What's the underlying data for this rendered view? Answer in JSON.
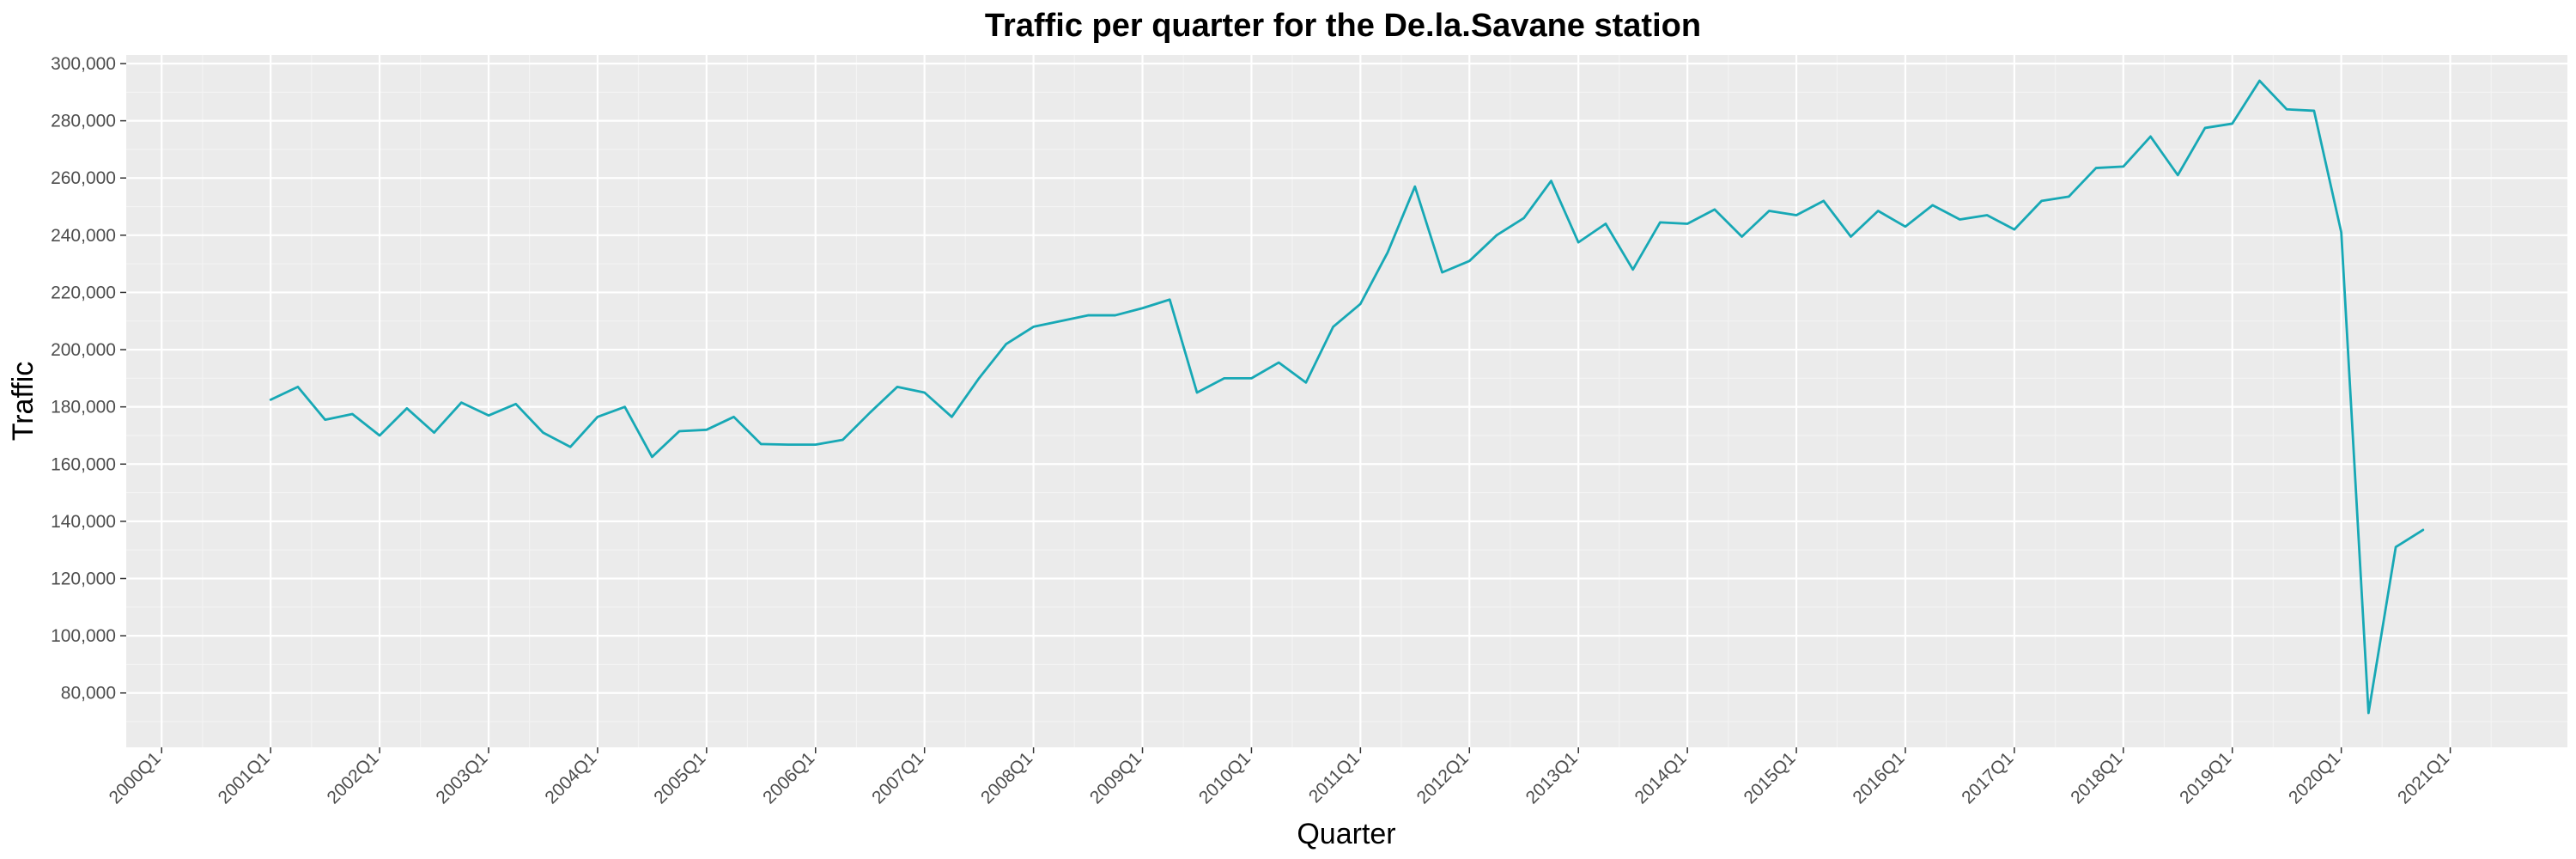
{
  "chart_data": {
    "type": "line",
    "title": "Traffic per quarter for the De.la.Savane station",
    "xlabel": "Quarter",
    "ylabel": "Traffic",
    "grid": true,
    "legend": "none",
    "x_ticks": [
      "2000Q1",
      "2001Q1",
      "2002Q1",
      "2003Q1",
      "2004Q1",
      "2005Q1",
      "2006Q1",
      "2007Q1",
      "2008Q1",
      "2009Q1",
      "2010Q1",
      "2011Q1",
      "2012Q1",
      "2013Q1",
      "2014Q1",
      "2015Q1",
      "2016Q1",
      "2017Q1",
      "2018Q1",
      "2019Q1",
      "2020Q1",
      "2021Q1"
    ],
    "y_ticks": [
      "80,000",
      "100,000",
      "120,000",
      "140,000",
      "160,000",
      "180,000",
      "200,000",
      "220,000",
      "240,000",
      "260,000",
      "280,000",
      "300,000"
    ],
    "xlim": [
      "2000Q1",
      "2021Q4"
    ],
    "ylim": [
      61000,
      303000
    ],
    "series": [
      {
        "color": "#17a8b5",
        "x": [
          "2001Q1",
          "2001Q2",
          "2001Q3",
          "2001Q4",
          "2002Q1",
          "2002Q2",
          "2002Q3",
          "2002Q4",
          "2003Q1",
          "2003Q2",
          "2003Q3",
          "2003Q4",
          "2004Q1",
          "2004Q2",
          "2004Q3",
          "2004Q4",
          "2005Q1",
          "2005Q2",
          "2005Q3",
          "2005Q4",
          "2006Q1",
          "2006Q2",
          "2006Q3",
          "2006Q4",
          "2007Q1",
          "2007Q2",
          "2007Q3",
          "2007Q4",
          "2008Q1",
          "2008Q2",
          "2008Q3",
          "2008Q4",
          "2009Q1",
          "2009Q2",
          "2009Q3",
          "2009Q4",
          "2010Q1",
          "2010Q2",
          "2010Q3",
          "2010Q4",
          "2011Q1",
          "2011Q2",
          "2011Q3",
          "2011Q4",
          "2012Q1",
          "2012Q2",
          "2012Q3",
          "2012Q4",
          "2013Q1",
          "2013Q2",
          "2013Q3",
          "2013Q4",
          "2014Q1",
          "2014Q2",
          "2014Q3",
          "2014Q4",
          "2015Q1",
          "2015Q2",
          "2015Q3",
          "2015Q4",
          "2016Q1",
          "2016Q2",
          "2016Q3",
          "2016Q4",
          "2017Q1",
          "2017Q2",
          "2017Q3",
          "2017Q4",
          "2018Q1",
          "2018Q2",
          "2018Q3",
          "2018Q4",
          "2019Q1",
          "2019Q2",
          "2019Q3",
          "2019Q4",
          "2020Q1",
          "2020Q2",
          "2020Q3",
          "2020Q4"
        ],
        "values": [
          182500,
          187000,
          175500,
          177500,
          170000,
          179500,
          171000,
          181500,
          177000,
          181000,
          171000,
          166000,
          176500,
          180000,
          162500,
          171500,
          172000,
          176500,
          167000,
          166800,
          166800,
          168500,
          178000,
          187000,
          185000,
          176500,
          190000,
          202000,
          208000,
          210000,
          212000,
          212000,
          214500,
          217500,
          185000,
          190000,
          190000,
          195500,
          188500,
          208000,
          216000,
          234000,
          257000,
          227000,
          231000,
          240000,
          246000,
          259000,
          237500,
          244000,
          228000,
          244500,
          244000,
          249000,
          239500,
          248500,
          247000,
          252000,
          239500,
          248500,
          243000,
          250500,
          245500,
          247000,
          242000,
          252000,
          253500,
          263500,
          264000,
          274500,
          261000,
          277500,
          279000,
          294000,
          284000,
          283500,
          241000,
          73000,
          131000,
          137000
        ]
      }
    ]
  }
}
